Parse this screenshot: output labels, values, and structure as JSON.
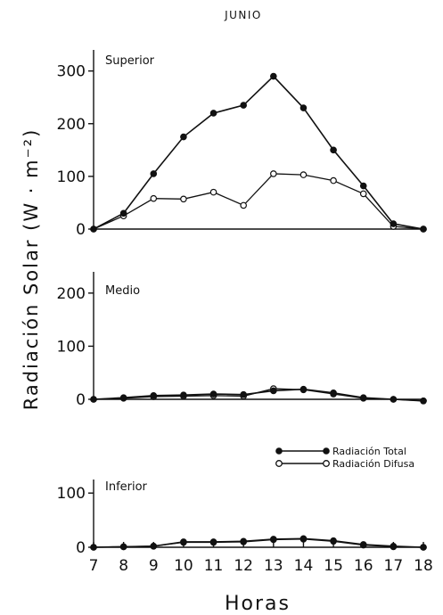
{
  "chart_data": {
    "type": "line",
    "title": "JUNIO",
    "ylabel": "Radiación Solar (W · m⁻²)",
    "xlabel": "Horas",
    "x": [
      7,
      8,
      9,
      10,
      11,
      12,
      13,
      14,
      15,
      16,
      17,
      18
    ],
    "x_ticks": [
      "7",
      "8",
      "9",
      "10",
      "11",
      "12",
      "13",
      "14",
      "15",
      "16",
      "17",
      "18"
    ],
    "legend": {
      "placement": "between middle and bottom panels, right",
      "entries": [
        {
          "label": "Radiación Total",
          "marker": "filled"
        },
        {
          "label": "Radiación Difusa",
          "marker": "open"
        }
      ]
    },
    "panels": [
      {
        "name": "Superior",
        "ylim": [
          0,
          340
        ],
        "yticks": [
          0,
          100,
          200,
          300
        ],
        "series": [
          {
            "name": "Radiación Total",
            "marker": "filled",
            "values": [
              0,
              30,
              105,
              175,
              220,
              235,
              290,
              230,
              150,
              82,
              10,
              0
            ]
          },
          {
            "name": "Radiación Difusa",
            "marker": "open",
            "values": [
              0,
              25,
              58,
              57,
              70,
              45,
              105,
              103,
              92,
              67,
              5,
              0
            ]
          }
        ]
      },
      {
        "name": "Medio",
        "ylim": [
          0,
          240
        ],
        "yticks": [
          0,
          100,
          200
        ],
        "series": [
          {
            "name": "Radiación Total",
            "marker": "filled",
            "values": [
              0,
              3,
              7,
              8,
              10,
              9,
              16,
              19,
              12,
              3,
              0,
              -3
            ]
          },
          {
            "name": "Radiación Difusa",
            "marker": "open",
            "values": [
              0,
              2,
              5,
              6,
              7,
              6,
              20,
              18,
              10,
              2,
              0,
              -3
            ]
          }
        ]
      },
      {
        "name": "Inferior",
        "ylim": [
          0,
          125
        ],
        "yticks": [
          0,
          100
        ],
        "series": [
          {
            "name": "Radiación Total",
            "marker": "filled",
            "values": [
              0,
              1,
              2,
              10,
              10,
              11,
              15,
              16,
              12,
              5,
              2,
              0
            ]
          },
          {
            "name": "Radiación Difusa",
            "marker": "open",
            "values": [
              0,
              1,
              2,
              9,
              9,
              10,
              14,
              15,
              11,
              4,
              1,
              0
            ]
          }
        ]
      }
    ]
  }
}
